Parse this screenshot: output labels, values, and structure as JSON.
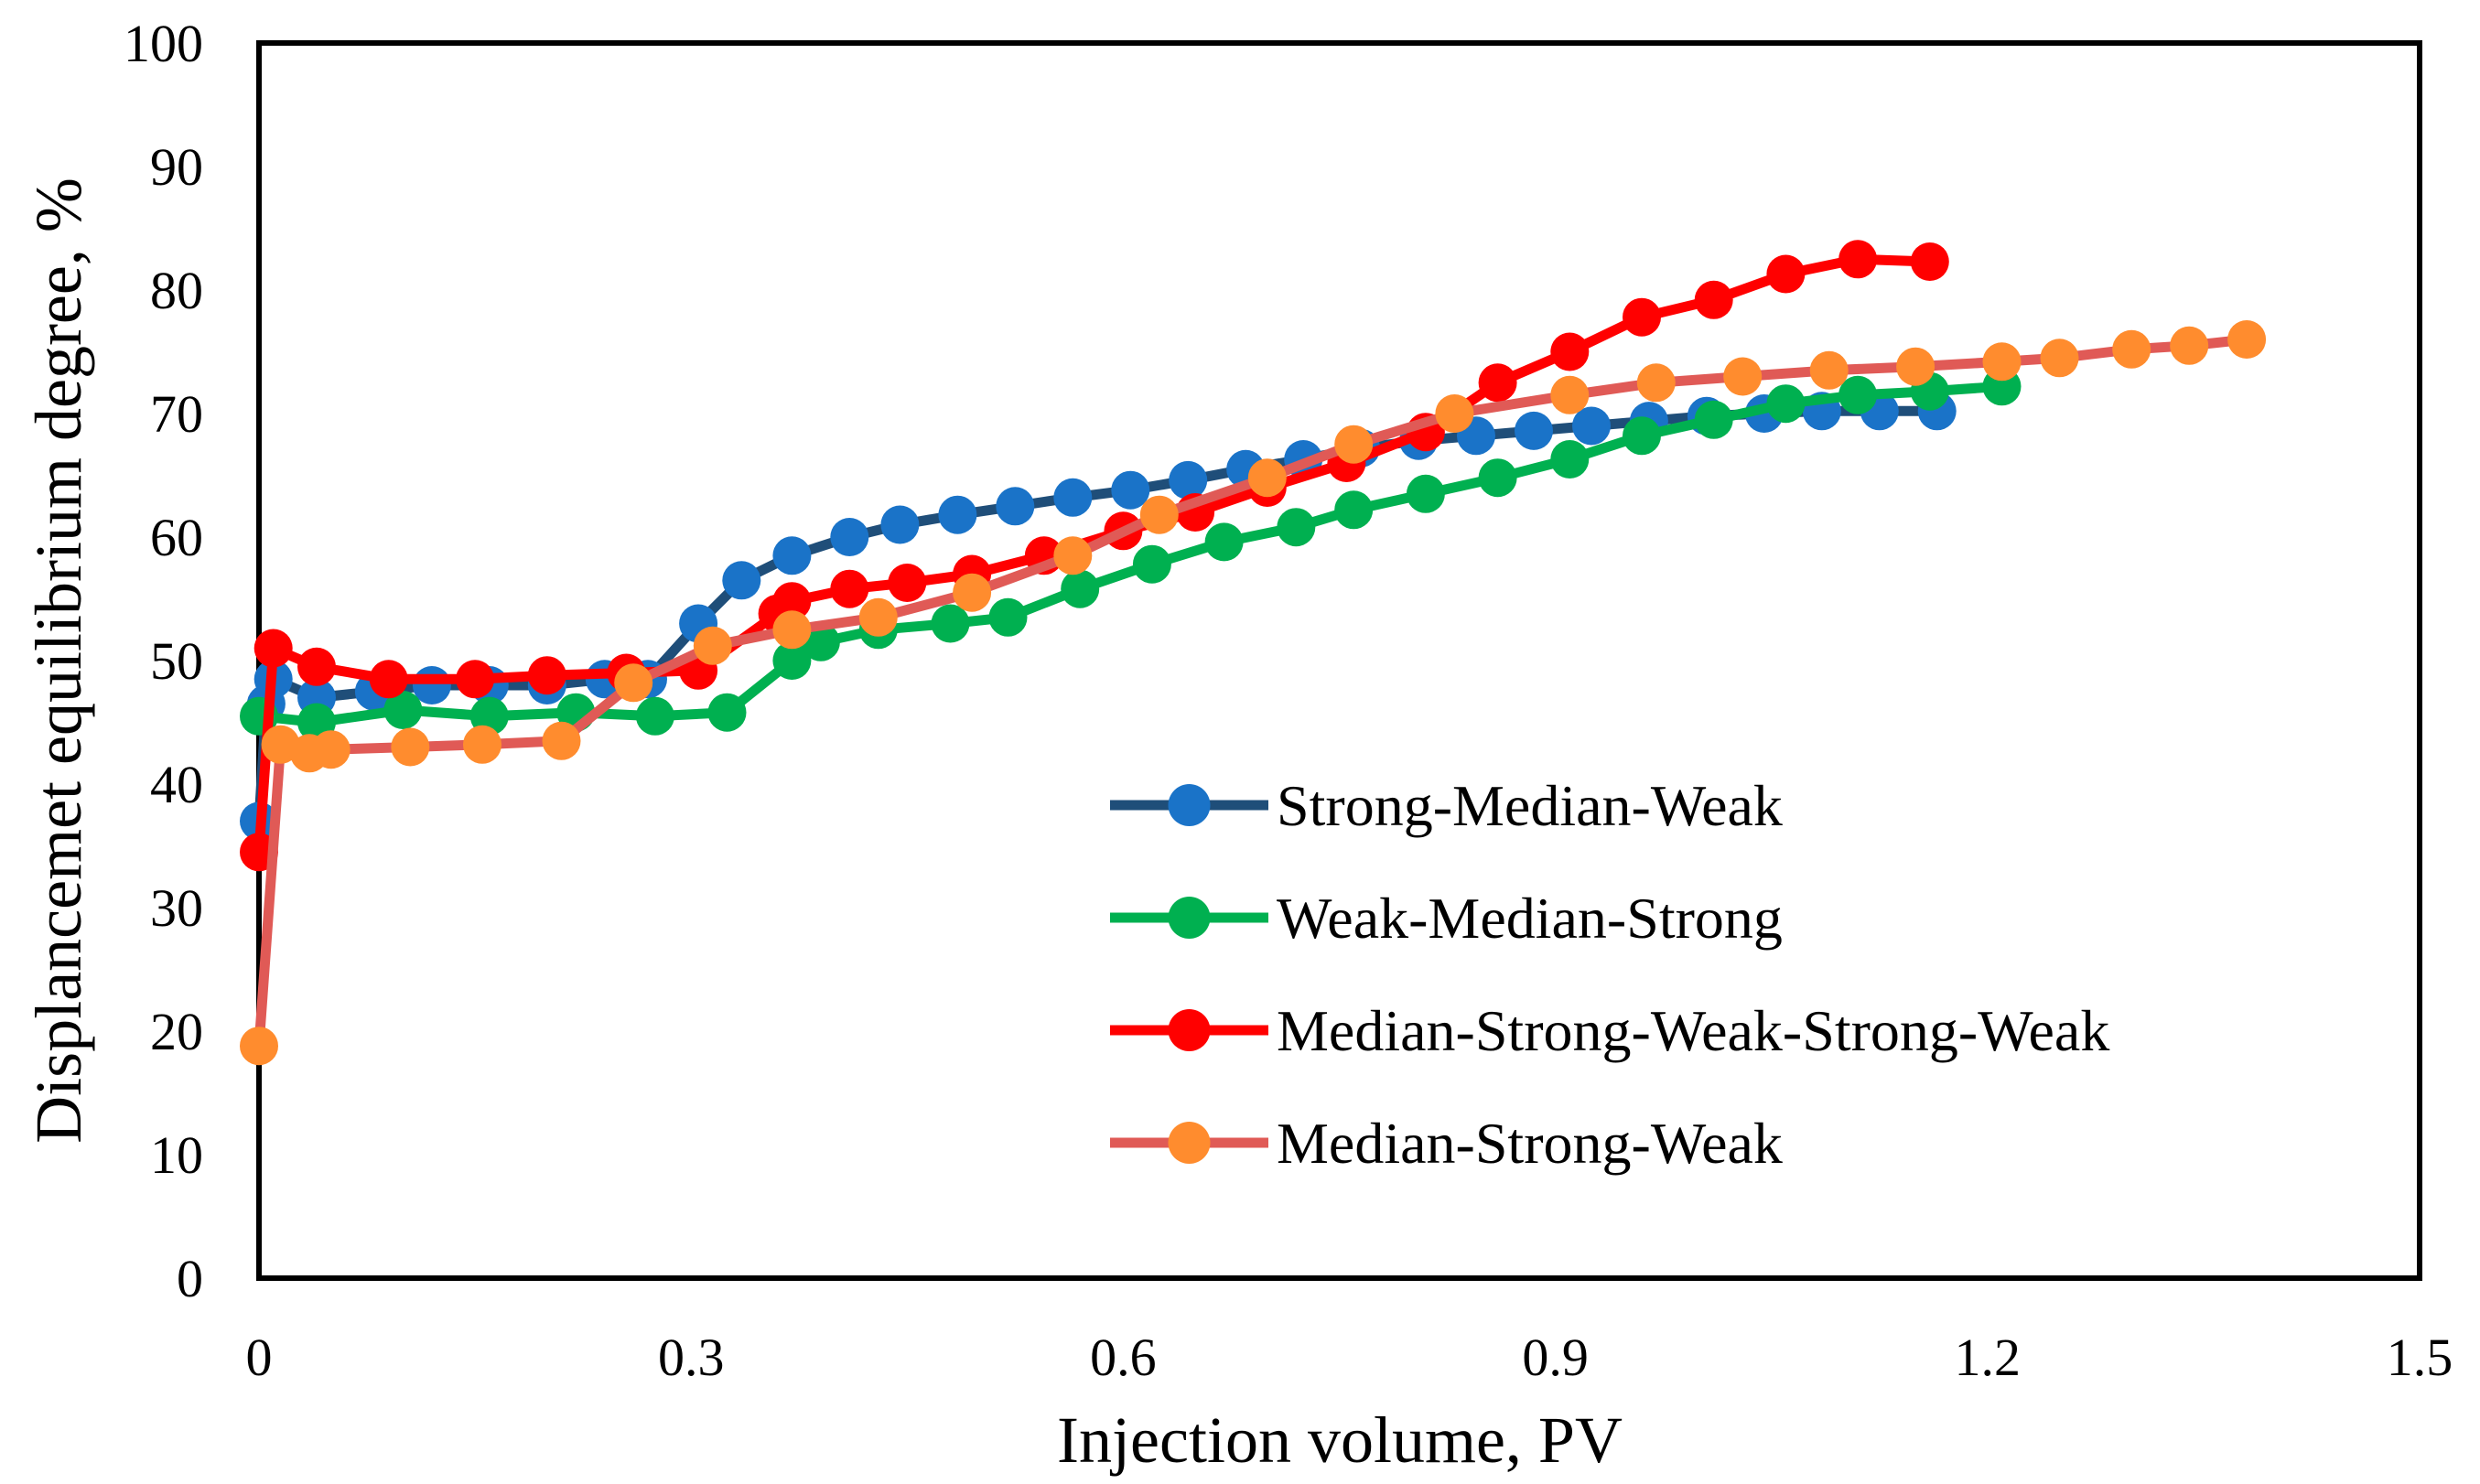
{
  "chart_data": {
    "type": "line",
    "title": "",
    "xlabel": "Injection volume, PV",
    "ylabel": "Displancemet equilibrium degree, %",
    "xlim": [
      0,
      1.5
    ],
    "ylim": [
      0,
      100
    ],
    "xticks": [
      0,
      0.3,
      0.6,
      0.9,
      1.2,
      1.5
    ],
    "xtick_labels": [
      "0",
      "0.3",
      "0.6",
      "0.9",
      "1.2",
      "1.5"
    ],
    "yticks": [
      0,
      10,
      20,
      30,
      40,
      50,
      60,
      70,
      80,
      90,
      100
    ],
    "ytick_labels": [
      "0",
      "10",
      "20",
      "30",
      "40",
      "50",
      "60",
      "70",
      "80",
      "90",
      "100"
    ],
    "grid": false,
    "legend_position": "center-right",
    "series": [
      {
        "name": "Strong-Median-Weak",
        "line_color": "#1f4e79",
        "marker_color": "#1a73c8",
        "x": [
          0.0,
          0.005,
          0.01,
          0.04,
          0.08,
          0.12,
          0.16,
          0.2,
          0.24,
          0.27,
          0.305,
          0.335,
          0.37,
          0.41,
          0.445,
          0.485,
          0.525,
          0.565,
          0.605,
          0.645,
          0.685,
          0.725,
          0.765,
          0.805,
          0.845,
          0.885,
          0.925,
          0.965,
          1.005,
          1.045,
          1.085,
          1.125,
          1.165
        ],
        "y": [
          37.0,
          46.5,
          48.5,
          47.0,
          47.5,
          48.0,
          48.0,
          48.0,
          48.5,
          48.5,
          53.0,
          56.5,
          58.5,
          60.0,
          61.0,
          61.8,
          62.5,
          63.2,
          63.8,
          64.6,
          65.5,
          66.3,
          67.2,
          67.8,
          68.2,
          68.6,
          69.0,
          69.4,
          69.8,
          70.0,
          70.2,
          70.2,
          70.2
        ]
      },
      {
        "name": "Weak-Median-Strong",
        "line_color": "#00b050",
        "marker_color": "#00b050",
        "x": [
          0.0,
          0.04,
          0.1,
          0.16,
          0.22,
          0.275,
          0.325,
          0.37,
          0.39,
          0.43,
          0.48,
          0.52,
          0.57,
          0.62,
          0.67,
          0.72,
          0.76,
          0.81,
          0.86,
          0.91,
          0.96,
          1.01,
          1.06,
          1.11,
          1.16,
          1.21
        ],
        "y": [
          45.5,
          45.0,
          46.0,
          45.5,
          45.8,
          45.5,
          45.8,
          50.0,
          51.5,
          52.5,
          53.0,
          53.5,
          55.8,
          57.8,
          59.6,
          60.8,
          62.2,
          63.5,
          64.8,
          66.3,
          68.2,
          69.5,
          70.8,
          71.5,
          71.8,
          72.2
        ]
      },
      {
        "name": "Median-Strong-Weak-Strong-Weak",
        "line_color": "#ff0000",
        "marker_color": "#ff0000",
        "x": [
          0.0,
          0.01,
          0.04,
          0.09,
          0.15,
          0.2,
          0.255,
          0.305,
          0.36,
          0.37,
          0.41,
          0.45,
          0.495,
          0.545,
          0.6,
          0.65,
          0.7,
          0.755,
          0.81,
          0.86,
          0.91,
          0.96,
          1.01,
          1.06,
          1.11,
          1.16
        ],
        "y": [
          34.5,
          51.0,
          49.5,
          48.5,
          48.5,
          48.8,
          49.0,
          49.2,
          53.8,
          54.8,
          55.8,
          56.3,
          57.0,
          58.5,
          60.5,
          62.0,
          64.0,
          66.0,
          68.5,
          72.5,
          75.0,
          77.8,
          79.2,
          81.3,
          82.5,
          82.3
        ]
      },
      {
        "name": "Median-Strong-Weak",
        "line_color": "#e05a56",
        "marker_color": "#ff8c2e",
        "x": [
          0.0,
          0.015,
          0.035,
          0.05,
          0.105,
          0.155,
          0.21,
          0.26,
          0.315,
          0.37,
          0.43,
          0.495,
          0.565,
          0.625,
          0.7,
          0.76,
          0.83,
          0.91,
          0.97,
          1.03,
          1.09,
          1.15,
          1.21,
          1.25,
          1.3,
          1.34,
          1.38
        ],
        "y": [
          18.8,
          43.2,
          42.5,
          42.8,
          43.0,
          43.2,
          43.5,
          48.2,
          51.2,
          52.5,
          53.5,
          55.5,
          58.5,
          61.8,
          64.8,
          67.5,
          70.0,
          71.5,
          72.5,
          73.0,
          73.5,
          73.8,
          74.2,
          74.5,
          75.2,
          75.5,
          76.0
        ]
      }
    ]
  }
}
